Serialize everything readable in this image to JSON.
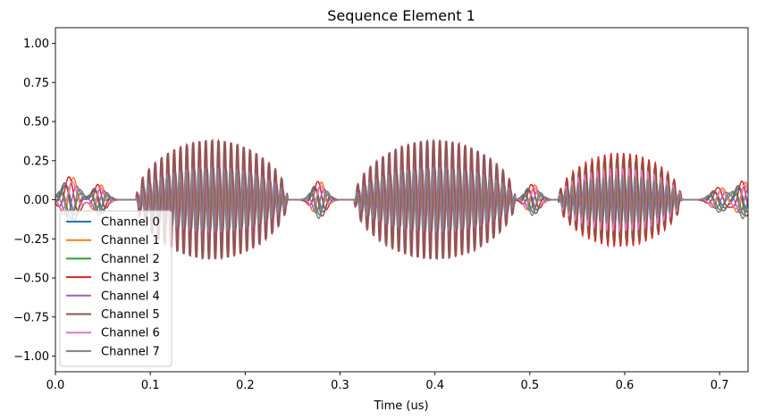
{
  "chart_data": {
    "type": "line",
    "title": "Sequence Element 1",
    "xlabel": "Time (us)",
    "ylabel": "",
    "xlim": [
      0.0,
      0.73
    ],
    "ylim": [
      -1.1,
      1.1
    ],
    "xticks": [
      0.0,
      0.1,
      0.2,
      0.3,
      0.4,
      0.5,
      0.6,
      0.7
    ],
    "xtick_labels": [
      "0.0",
      "0.1",
      "0.2",
      "0.3",
      "0.4",
      "0.5",
      "0.6",
      "0.7"
    ],
    "yticks": [
      1.0,
      0.75,
      0.5,
      0.25,
      0.0,
      -0.25,
      -0.5,
      -0.75,
      -1.0
    ],
    "ytick_labels": [
      "1.00",
      "0.75",
      "0.50",
      "0.25",
      "0.00",
      "−0.25",
      "−0.50",
      "−0.75",
      "−1.00"
    ],
    "grid": false,
    "legend_position": "lower-left",
    "pulses": [
      {
        "start": 0.085,
        "end": 0.245,
        "carrier_freq": 150,
        "amp": [
          0.2,
          0.2,
          0.2,
          0.38,
          0.38,
          0.38,
          0.2,
          0.2
        ]
      },
      {
        "start": 0.315,
        "end": 0.485,
        "carrier_freq": 150,
        "amp": [
          0.2,
          0.2,
          0.2,
          0.38,
          0.38,
          0.38,
          0.2,
          0.2
        ]
      },
      {
        "start": 0.53,
        "end": 0.66,
        "carrier_freq": 150,
        "amp": [
          0.15,
          0.15,
          0.28,
          0.3,
          0.18,
          0.26,
          0.2,
          0.15
        ]
      }
    ],
    "wiggles": [
      {
        "center": 0.016,
        "amp": 0.15,
        "width": 0.012
      },
      {
        "center": 0.046,
        "amp": 0.1,
        "width": 0.01
      },
      {
        "center": 0.278,
        "amp": 0.12,
        "width": 0.01
      },
      {
        "center": 0.503,
        "amp": 0.1,
        "width": 0.01
      },
      {
        "center": 0.7,
        "amp": 0.08,
        "width": 0.012
      },
      {
        "center": 0.725,
        "amp": 0.12,
        "width": 0.01
      }
    ],
    "series": [
      {
        "name": "Channel 0",
        "color": "#1f77b4"
      },
      {
        "name": "Channel 1",
        "color": "#ff7f0e"
      },
      {
        "name": "Channel 2",
        "color": "#2ca02c"
      },
      {
        "name": "Channel 3",
        "color": "#d62728"
      },
      {
        "name": "Channel 4",
        "color": "#9467bd"
      },
      {
        "name": "Channel 5",
        "color": "#8c564b"
      },
      {
        "name": "Channel 6",
        "color": "#e377c2"
      },
      {
        "name": "Channel 7",
        "color": "#7f7f7f"
      }
    ]
  }
}
